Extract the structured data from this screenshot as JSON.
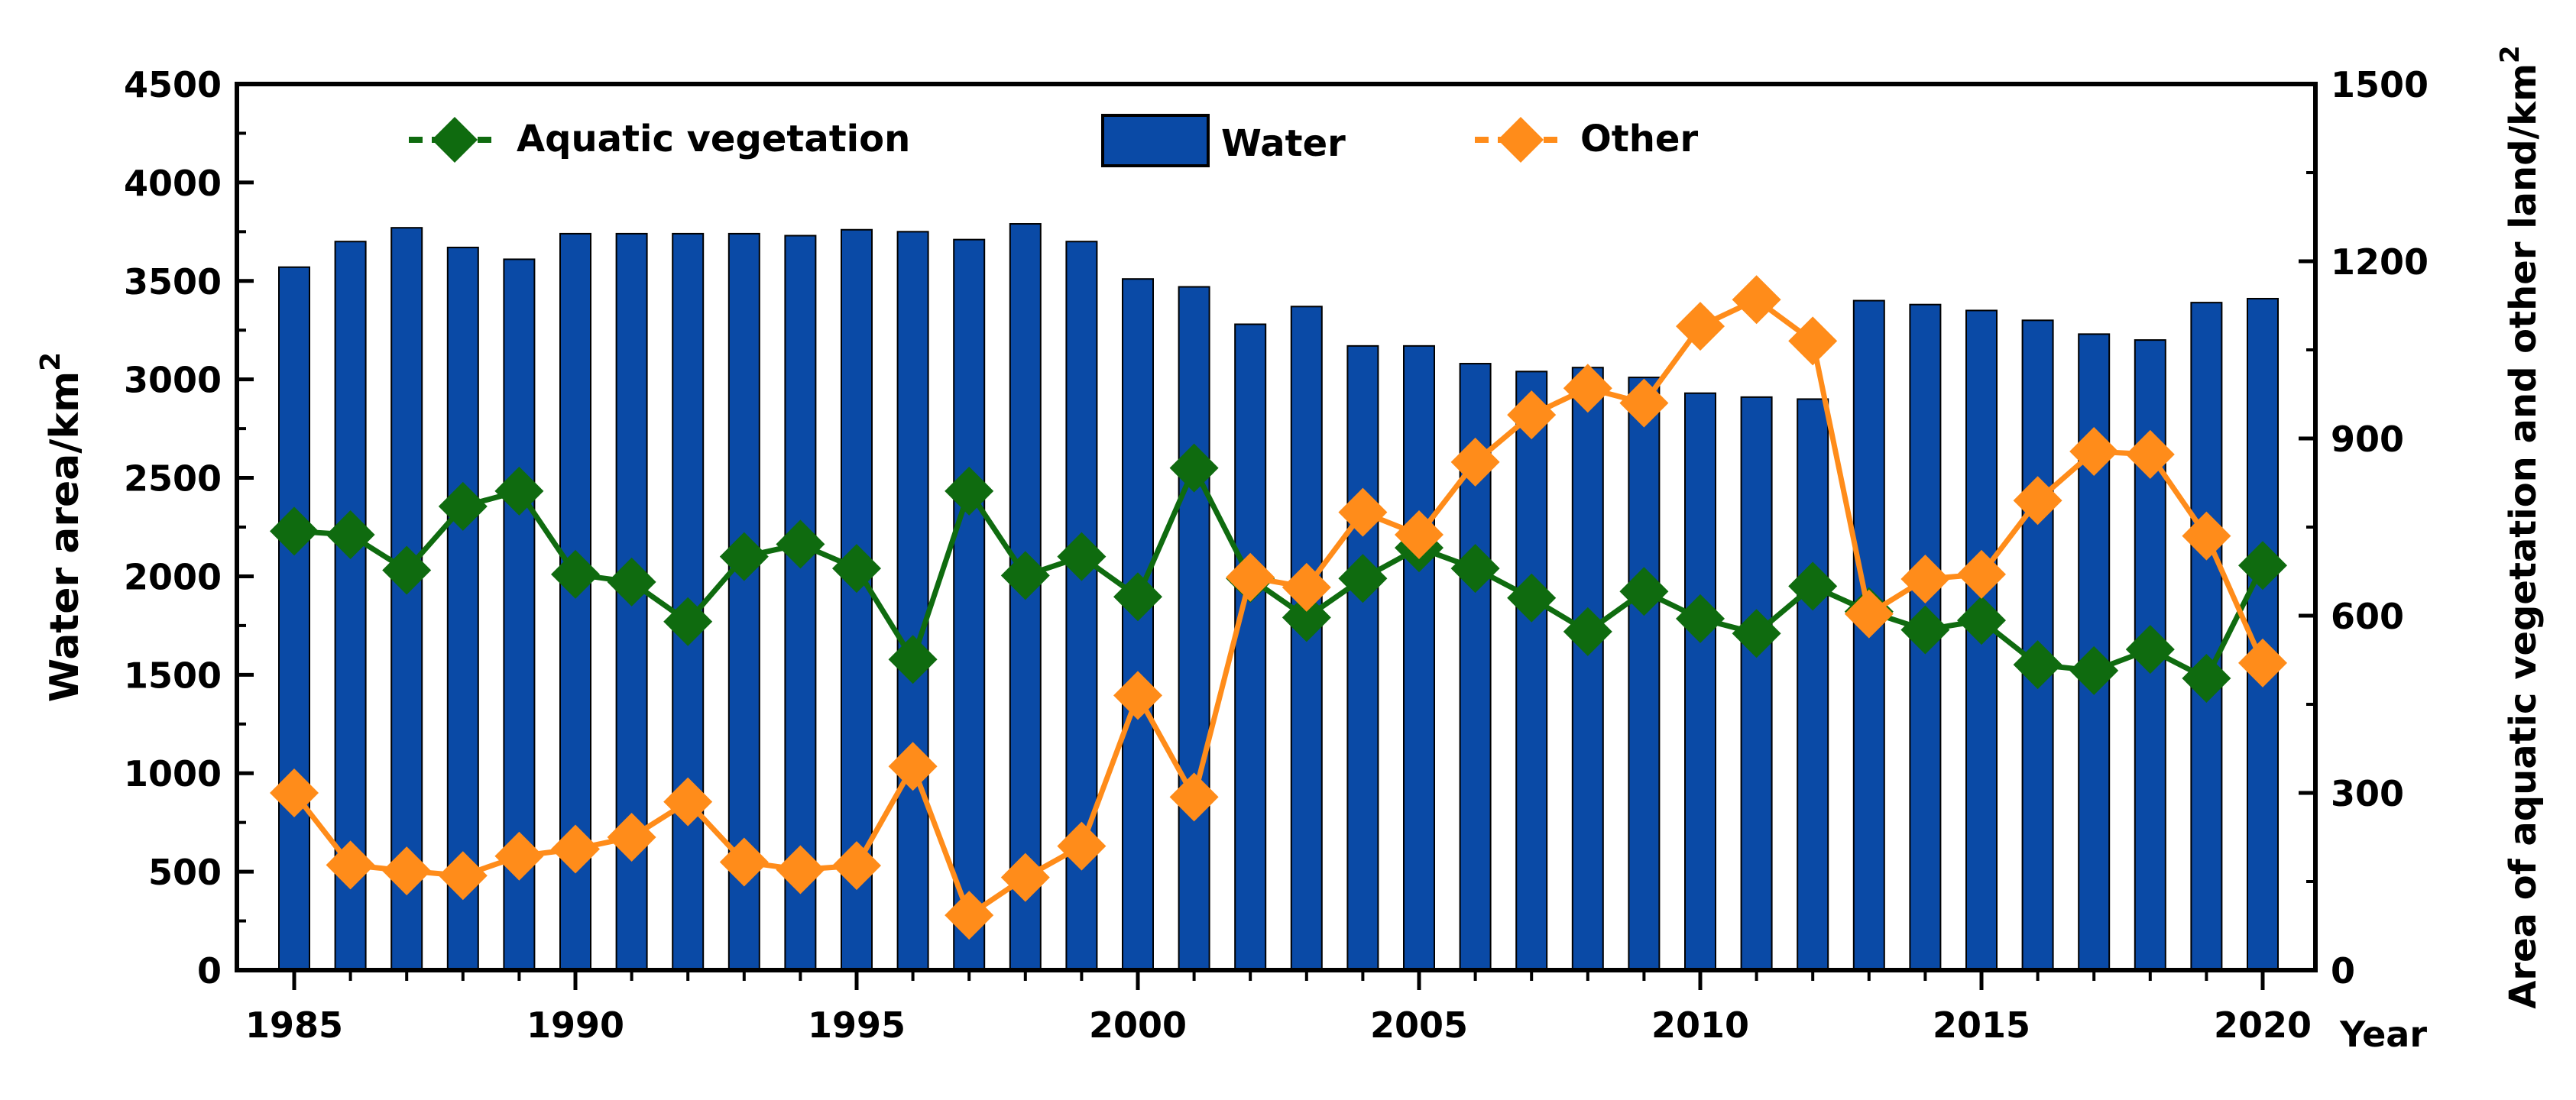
{
  "chart_data": {
    "type": "bar+line",
    "title": "",
    "xlabel": "Year",
    "ylabel": "Water area/km",
    "ylabel_sup": "2",
    "y2label": "Area of aquatic vegetation and other land/km",
    "y2label_sup": "2",
    "ylim": [
      0,
      4500
    ],
    "y2lim": [
      0,
      1500
    ],
    "yticks": [
      "0",
      "500",
      "1000",
      "1500",
      "2000",
      "2500",
      "3000",
      "3500",
      "4000",
      "4500"
    ],
    "y2ticks": [
      "0",
      "300",
      "600",
      "900",
      "1200",
      "1500"
    ],
    "xticks": [
      "1985",
      "1990",
      "1995",
      "2000",
      "2005",
      "2010",
      "2015",
      "2020"
    ],
    "years": [
      1985,
      1986,
      1987,
      1988,
      1989,
      1990,
      1991,
      1992,
      1993,
      1994,
      1995,
      1996,
      1997,
      1998,
      1999,
      2000,
      2001,
      2002,
      2003,
      2004,
      2005,
      2006,
      2007,
      2008,
      2009,
      2010,
      2011,
      2012,
      2013,
      2014,
      2015,
      2016,
      2017,
      2018,
      2019,
      2020
    ],
    "legend_position": "top",
    "series": [
      {
        "name": "Water",
        "kind": "bar",
        "axis": "left",
        "color": "#0a4aa6",
        "values": [
          3570,
          3700,
          3770,
          3670,
          3610,
          3740,
          3740,
          3740,
          3740,
          3730,
          3760,
          3750,
          3710,
          3790,
          3700,
          3510,
          3470,
          3280,
          3370,
          3170,
          3170,
          3080,
          3040,
          3060,
          3010,
          2930,
          2910,
          2900,
          3400,
          3380,
          3350,
          3300,
          3230,
          3200,
          3390,
          3410
        ]
      },
      {
        "name": "Aquatic vegetation",
        "kind": "line",
        "axis": "right",
        "color": "#0f6b0f",
        "marker": "diamond",
        "values": [
          743,
          737,
          677,
          785,
          811,
          670,
          657,
          590,
          700,
          721,
          680,
          526,
          811,
          668,
          700,
          632,
          850,
          663,
          597,
          663,
          715,
          680,
          630,
          573,
          641,
          595,
          570,
          650,
          607,
          576,
          592,
          517,
          507,
          543,
          494,
          685
        ]
      },
      {
        "name": "Other",
        "kind": "line",
        "axis": "right",
        "color": "#ff8c1a",
        "marker": "diamond",
        "values": [
          300,
          178,
          168,
          160,
          193,
          205,
          225,
          285,
          183,
          170,
          177,
          345,
          93,
          157,
          210,
          465,
          293,
          665,
          648,
          775,
          737,
          860,
          940,
          985,
          960,
          1090,
          1135,
          1065,
          603,
          662,
          670,
          795,
          878,
          873,
          735,
          520
        ]
      }
    ]
  }
}
